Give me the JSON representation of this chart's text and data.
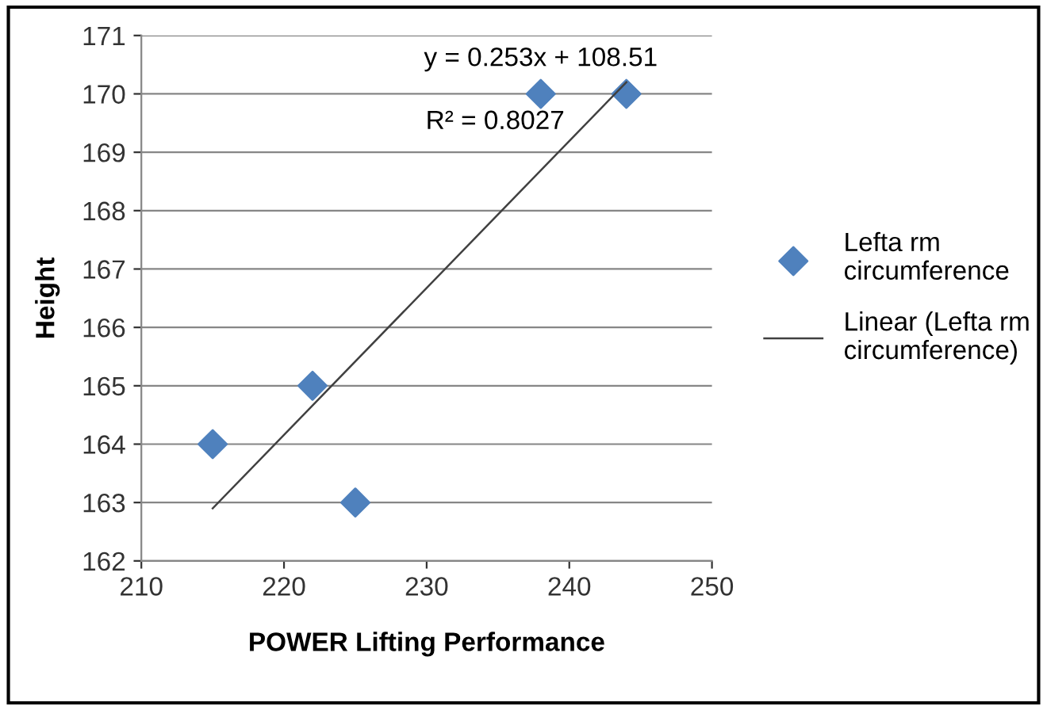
{
  "chart_data": {
    "type": "scatter",
    "xlabel": "POWER Lifting Performance",
    "ylabel": "Height",
    "series": [
      {
        "name": "Lefta rm\ncircumference",
        "color": "#4f81bd",
        "x": [
          215,
          222,
          225,
          238,
          244
        ],
        "values": [
          164,
          165,
          163,
          170,
          170
        ],
        "marker": "diamond"
      },
      {
        "name": "Linear (Lefta rm\ncircumference)",
        "type": "line",
        "color": "#404040",
        "x": [
          215,
          244
        ],
        "values": [
          162.9,
          170.2
        ],
        "marker": "none"
      }
    ],
    "annotations": [
      "y = 0.253x + 108.51",
      "R² = 0.8027"
    ],
    "xlim": [
      210,
      250
    ],
    "xticks": [
      210,
      220,
      230,
      240,
      250
    ],
    "ylim": [
      162,
      171
    ],
    "yticks": [
      162,
      163,
      164,
      165,
      166,
      167,
      168,
      169,
      170,
      171
    ],
    "grid": "y",
    "legend": "right"
  }
}
